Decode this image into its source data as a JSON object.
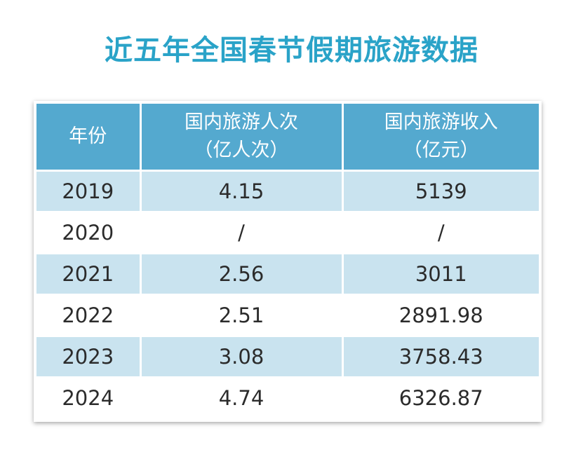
{
  "title": "近五年全国春节假期旅游数据",
  "chart_data": {
    "type": "table",
    "title": "近五年全国春节假期旅游数据",
    "columns": [
      {
        "line1": "年份",
        "line2": ""
      },
      {
        "line1": "国内旅游人次",
        "line2": "（亿人次）"
      },
      {
        "line1": "国内旅游收入",
        "line2": "（亿元）"
      }
    ],
    "rows": [
      {
        "year": "2019",
        "trips": "4.15",
        "revenue": "5139"
      },
      {
        "year": "2020",
        "trips": "/",
        "revenue": "/"
      },
      {
        "year": "2021",
        "trips": "2.56",
        "revenue": "3011"
      },
      {
        "year": "2022",
        "trips": "2.51",
        "revenue": "2891.98"
      },
      {
        "year": "2023",
        "trips": "3.08",
        "revenue": "3758.43"
      },
      {
        "year": "2024",
        "trips": "4.74",
        "revenue": "6326.87"
      }
    ]
  },
  "colors": {
    "title": "#2aa3c8",
    "header_bg": "#54a9cf",
    "stripe_bg": "#c9e3ef",
    "text": "#2b2b2b"
  }
}
